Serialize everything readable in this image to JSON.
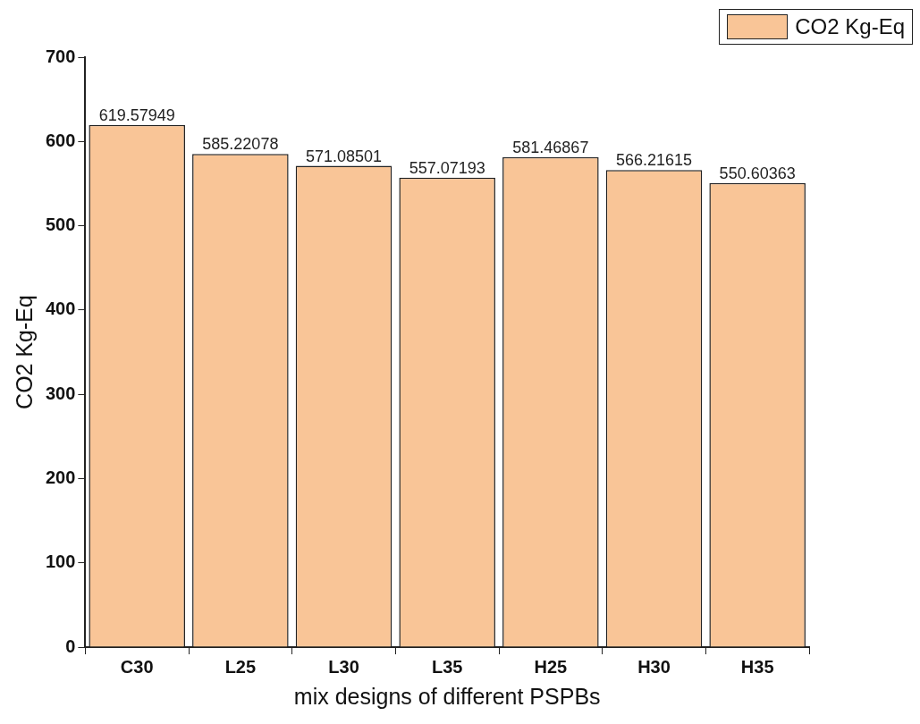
{
  "chart_data": {
    "type": "bar",
    "xlabel": "mix designs of different PSPBs",
    "ylabel": "CO2 Kg-Eq",
    "categories": [
      "C30",
      "L25",
      "L30",
      "L35",
      "H25",
      "H30",
      "H35"
    ],
    "series": [
      {
        "name": "CO2 Kg-Eq",
        "color": "#f9c597",
        "values": [
          619.57949,
          585.22078,
          571.08501,
          557.07193,
          581.46867,
          566.21615,
          550.60363
        ]
      }
    ],
    "ylim": [
      0,
      700
    ],
    "yticks": [
      0,
      100,
      200,
      300,
      400,
      500,
      600,
      700
    ],
    "grid": false,
    "legend": "top right",
    "data_labels": true
  }
}
